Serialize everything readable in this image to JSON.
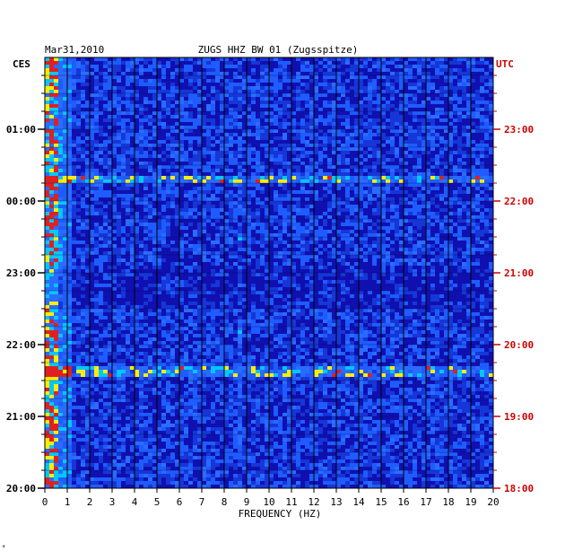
{
  "chart_data": {
    "type": "heatmap",
    "date": "Mar31,2010",
    "title": "ZUGS HHZ BW 01 (Zugsspitze)",
    "xlabel": "FREQUENCY (HZ)",
    "xlim": [
      0,
      20
    ],
    "x_ticks": [
      "0",
      "1",
      "2",
      "3",
      "4",
      "5",
      "6",
      "7",
      "8",
      "9",
      "10",
      "11",
      "12",
      "13",
      "14",
      "15",
      "16",
      "17",
      "18",
      "19",
      "20"
    ],
    "left_axis_label": "CES",
    "right_axis_label": "UTC",
    "left_ticks": [
      "01:00",
      "00:00",
      "23:00",
      "22:00",
      "21:00",
      "20:00"
    ],
    "right_ticks": [
      "23:00",
      "22:00",
      "21:00",
      "20:00",
      "19:00",
      "18:00"
    ],
    "hours_span": 6,
    "colors": {
      "background_low": "#1010b0",
      "mid": "#1e5cff",
      "high_cyan": "#00c8ff",
      "yellow": "#ffee00",
      "red": "#e02020",
      "right_axis_text": "#cc0000"
    },
    "features": {
      "strong_low_freq_band_hz": [
        0.1,
        0.7
      ],
      "persistent_line_hz": 8.75,
      "bright_horizontal_rows_hours_from_top": [
        1.68,
        4.35
      ],
      "dark_gap_rows_hours_from_top": [
        2.85,
        3.5
      ]
    }
  },
  "footnote": "*"
}
